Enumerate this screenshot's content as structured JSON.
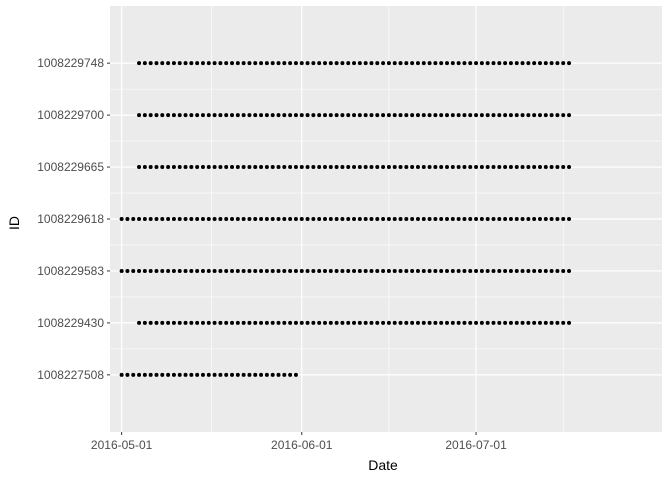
{
  "chart_data": {
    "type": "scatter",
    "xlabel": "Date",
    "ylabel": "ID",
    "x_ticks": [
      "2016-05-01",
      "2016-06-01",
      "2016-07-01"
    ],
    "xlim": [
      "2016-04-29",
      "2016-08-02"
    ],
    "categories": [
      "1008227508",
      "1008229430",
      "1008229583",
      "1008229618",
      "1008229665",
      "1008229700",
      "1008229748"
    ],
    "grid": true,
    "background": "#EBEBEB",
    "point_color": "#000000",
    "series": [
      {
        "id": "1008227508",
        "start": "2016-05-01",
        "end": "2016-05-31"
      },
      {
        "id": "1008229430",
        "start": "2016-05-04",
        "end": "2016-07-17"
      },
      {
        "id": "1008229583",
        "start": "2016-05-01",
        "end": "2016-07-17"
      },
      {
        "id": "1008229618",
        "start": "2016-05-01",
        "end": "2016-07-17"
      },
      {
        "id": "1008229665",
        "start": "2016-05-04",
        "end": "2016-07-17"
      },
      {
        "id": "1008229700",
        "start": "2016-05-04",
        "end": "2016-07-17"
      },
      {
        "id": "1008229748",
        "start": "2016-05-04",
        "end": "2016-07-17"
      }
    ]
  }
}
